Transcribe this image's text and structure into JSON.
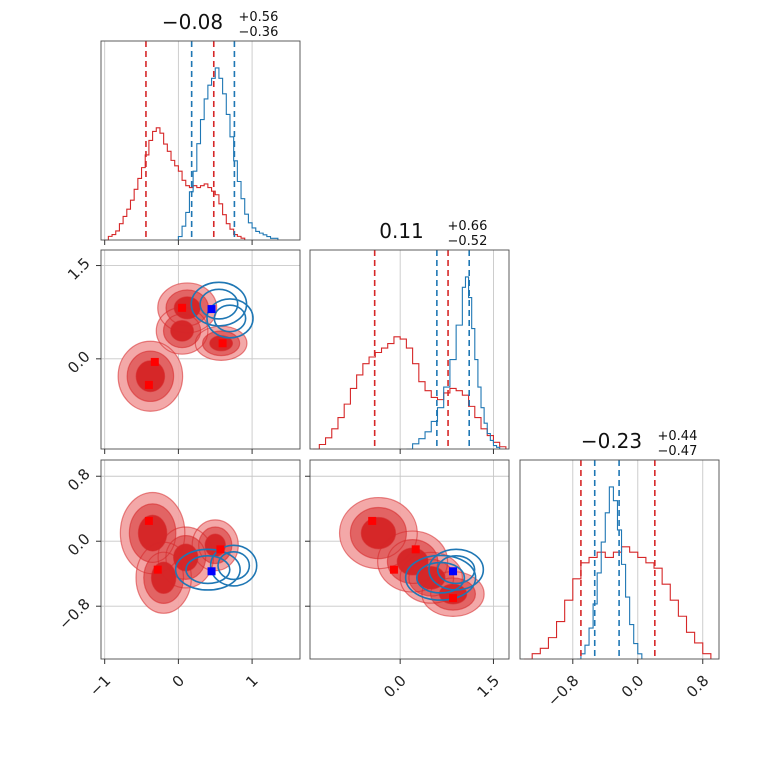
{
  "chart_data": {
    "type": "corner",
    "colors": {
      "red": "#d62728",
      "blue": "#1f77b4",
      "red_fill_light": "#f2a3a3",
      "red_fill_mid": "#e06060",
      "red_fill_dark": "#d62728",
      "red_marker": "#ff0000",
      "blue_marker": "#0000ff"
    },
    "params": [
      {
        "title_main": "−0.08",
        "title_plus": "+0.56",
        "title_minus": "−0.36",
        "range": [
          -1.05,
          1.65
        ],
        "ticks": [
          -1,
          0,
          1
        ],
        "tick_labels": [
          "−1",
          "0",
          "1"
        ]
      },
      {
        "title_main": "0.11",
        "title_plus": "+0.66",
        "title_minus": "−0.52",
        "range": [
          -1.45,
          1.75
        ],
        "ticks": [
          0.0,
          1.5
        ],
        "tick_labels": [
          "0.0",
          "1.5"
        ]
      },
      {
        "title_main": "−0.23",
        "title_plus": "+0.44",
        "title_minus": "−0.47",
        "range": [
          -1.45,
          1.0
        ],
        "ticks": [
          -0.8,
          0.0,
          0.8
        ],
        "tick_labels": [
          "−0.8",
          "0.0",
          "0.8"
        ]
      }
    ],
    "diag": [
      {
        "param": 0,
        "red_quantiles": [
          -0.44,
          0.48
        ],
        "blue_quantiles": [
          0.18,
          0.76
        ],
        "red_hist": [
          [
            -1.0,
            0
          ],
          [
            -0.95,
            2
          ],
          [
            -0.9,
            3
          ],
          [
            -0.85,
            5
          ],
          [
            -0.8,
            9
          ],
          [
            -0.75,
            13
          ],
          [
            -0.7,
            17
          ],
          [
            -0.65,
            22
          ],
          [
            -0.6,
            28
          ],
          [
            -0.55,
            34
          ],
          [
            -0.5,
            40
          ],
          [
            -0.45,
            47
          ],
          [
            -0.4,
            55
          ],
          [
            -0.35,
            60
          ],
          [
            -0.3,
            62
          ],
          [
            -0.25,
            59
          ],
          [
            -0.2,
            53
          ],
          [
            -0.15,
            49
          ],
          [
            -0.1,
            44
          ],
          [
            -0.05,
            41
          ],
          [
            0.0,
            38
          ],
          [
            0.05,
            33
          ],
          [
            0.1,
            30
          ],
          [
            0.15,
            29
          ],
          [
            0.2,
            30
          ],
          [
            0.25,
            29
          ],
          [
            0.3,
            30
          ],
          [
            0.35,
            31
          ],
          [
            0.4,
            29
          ],
          [
            0.45,
            27
          ],
          [
            0.5,
            25
          ],
          [
            0.55,
            20
          ],
          [
            0.6,
            14
          ],
          [
            0.65,
            9
          ],
          [
            0.7,
            6
          ],
          [
            0.75,
            3
          ],
          [
            0.8,
            2
          ],
          [
            0.85,
            1
          ],
          [
            0.9,
            0
          ]
        ],
        "blue_hist": [
          [
            -0.05,
            0
          ],
          [
            0.0,
            2
          ],
          [
            0.05,
            8
          ],
          [
            0.1,
            16
          ],
          [
            0.15,
            28
          ],
          [
            0.2,
            40
          ],
          [
            0.25,
            56
          ],
          [
            0.3,
            70
          ],
          [
            0.35,
            82
          ],
          [
            0.4,
            90
          ],
          [
            0.45,
            94
          ],
          [
            0.5,
            100
          ],
          [
            0.55,
            94
          ],
          [
            0.6,
            85
          ],
          [
            0.65,
            73
          ],
          [
            0.7,
            60
          ],
          [
            0.75,
            46
          ],
          [
            0.8,
            34
          ],
          [
            0.85,
            24
          ],
          [
            0.9,
            15
          ],
          [
            0.95,
            10
          ],
          [
            1.0,
            7
          ],
          [
            1.05,
            5
          ],
          [
            1.1,
            4
          ],
          [
            1.15,
            3
          ],
          [
            1.2,
            2
          ],
          [
            1.25,
            1
          ],
          [
            1.3,
            1
          ],
          [
            1.35,
            0
          ]
        ]
      },
      {
        "param": 1,
        "red_quantiles": [
          -0.41,
          0.77
        ],
        "blue_quantiles": [
          0.59,
          1.11
        ],
        "red_hist": [
          [
            -1.4,
            0
          ],
          [
            -1.3,
            2
          ],
          [
            -1.2,
            5
          ],
          [
            -1.1,
            9
          ],
          [
            -1.0,
            14
          ],
          [
            -0.9,
            20
          ],
          [
            -0.8,
            27
          ],
          [
            -0.7,
            33
          ],
          [
            -0.6,
            38
          ],
          [
            -0.5,
            41
          ],
          [
            -0.4,
            43
          ],
          [
            -0.3,
            45
          ],
          [
            -0.2,
            47
          ],
          [
            -0.1,
            50
          ],
          [
            0.0,
            49
          ],
          [
            0.1,
            45
          ],
          [
            0.2,
            38
          ],
          [
            0.3,
            30
          ],
          [
            0.4,
            26
          ],
          [
            0.5,
            23
          ],
          [
            0.6,
            22
          ],
          [
            0.7,
            25
          ],
          [
            0.8,
            27
          ],
          [
            0.9,
            26
          ],
          [
            1.0,
            24
          ],
          [
            1.1,
            19
          ],
          [
            1.2,
            14
          ],
          [
            1.3,
            9
          ],
          [
            1.4,
            6
          ],
          [
            1.5,
            3
          ],
          [
            1.6,
            1
          ],
          [
            1.7,
            0
          ]
        ],
        "blue_hist": [
          [
            0.1,
            0
          ],
          [
            0.2,
            3
          ],
          [
            0.3,
            6
          ],
          [
            0.4,
            10
          ],
          [
            0.5,
            16
          ],
          [
            0.6,
            24
          ],
          [
            0.7,
            36
          ],
          [
            0.8,
            52
          ],
          [
            0.9,
            72
          ],
          [
            1.0,
            94
          ],
          [
            1.05,
            100
          ],
          [
            1.1,
            88
          ],
          [
            1.15,
            70
          ],
          [
            1.2,
            52
          ],
          [
            1.25,
            36
          ],
          [
            1.3,
            24
          ],
          [
            1.35,
            15
          ],
          [
            1.4,
            9
          ],
          [
            1.45,
            5
          ],
          [
            1.5,
            2
          ],
          [
            1.55,
            1
          ],
          [
            1.6,
            0
          ]
        ]
      },
      {
        "param": 2,
        "red_quantiles": [
          -0.7,
          0.21
        ],
        "blue_quantiles": [
          -0.53,
          -0.23
        ],
        "red_hist": [
          [
            -1.4,
            0
          ],
          [
            -1.3,
            1
          ],
          [
            -1.2,
            2
          ],
          [
            -1.1,
            4
          ],
          [
            -1.0,
            7
          ],
          [
            -0.9,
            11
          ],
          [
            -0.8,
            15
          ],
          [
            -0.7,
            18
          ],
          [
            -0.6,
            19
          ],
          [
            -0.5,
            20
          ],
          [
            -0.4,
            19
          ],
          [
            -0.3,
            20
          ],
          [
            -0.2,
            21
          ],
          [
            -0.1,
            20
          ],
          [
            0.0,
            19
          ],
          [
            0.1,
            18
          ],
          [
            0.2,
            17
          ],
          [
            0.3,
            14
          ],
          [
            0.4,
            11
          ],
          [
            0.5,
            8
          ],
          [
            0.6,
            5
          ],
          [
            0.7,
            3
          ],
          [
            0.8,
            1
          ],
          [
            0.9,
            0
          ]
        ],
        "blue_hist": [
          [
            -0.75,
            0
          ],
          [
            -0.7,
            3
          ],
          [
            -0.65,
            8
          ],
          [
            -0.6,
            18
          ],
          [
            -0.55,
            32
          ],
          [
            -0.5,
            50
          ],
          [
            -0.45,
            68
          ],
          [
            -0.4,
            85
          ],
          [
            -0.35,
            100
          ],
          [
            -0.3,
            92
          ],
          [
            -0.25,
            75
          ],
          [
            -0.2,
            55
          ],
          [
            -0.15,
            36
          ],
          [
            -0.1,
            20
          ],
          [
            -0.05,
            9
          ],
          [
            0.0,
            3
          ],
          [
            0.05,
            0
          ]
        ]
      }
    ],
    "joint": [
      {
        "x_param": 0,
        "y_param": 1,
        "red_blobs": [
          [
            -0.38,
            -0.28,
            0.35,
            0.45
          ],
          [
            0.12,
            0.82,
            0.32,
            0.32
          ],
          [
            0.58,
            0.25,
            0.28,
            0.22
          ],
          [
            0.05,
            0.45,
            0.28,
            0.3
          ]
        ],
        "blue_blobs": [
          [
            0.55,
            0.88,
            0.3,
            0.28
          ],
          [
            0.7,
            0.65,
            0.25,
            0.25
          ]
        ],
        "red_markers": [
          [
            -0.32,
            -0.05
          ],
          [
            -0.4,
            -0.42
          ],
          [
            0.05,
            0.82
          ],
          [
            0.6,
            0.25
          ]
        ],
        "blue_markers": [
          [
            0.45,
            0.8
          ]
        ]
      },
      {
        "x_param": 0,
        "y_param": 2,
        "red_blobs": [
          [
            -0.35,
            0.1,
            0.35,
            0.4
          ],
          [
            -0.2,
            -0.45,
            0.3,
            0.35
          ],
          [
            0.5,
            -0.05,
            0.25,
            0.25
          ],
          [
            0.1,
            -0.2,
            0.3,
            0.3
          ]
        ],
        "blue_blobs": [
          [
            0.4,
            -0.35,
            0.35,
            0.2
          ],
          [
            0.75,
            -0.3,
            0.25,
            0.2
          ]
        ],
        "red_markers": [
          [
            -0.4,
            0.25
          ],
          [
            -0.28,
            -0.35
          ],
          [
            0.57,
            -0.1
          ]
        ],
        "blue_markers": [
          [
            0.45,
            -0.37
          ]
        ]
      },
      {
        "x_param": 1,
        "y_param": 2,
        "red_blobs": [
          [
            -0.35,
            0.1,
            0.5,
            0.35
          ],
          [
            0.2,
            -0.25,
            0.45,
            0.3
          ],
          [
            0.85,
            -0.65,
            0.4,
            0.22
          ],
          [
            0.5,
            -0.45,
            0.4,
            0.25
          ]
        ],
        "blue_blobs": [
          [
            0.65,
            -0.45,
            0.45,
            0.22
          ],
          [
            0.9,
            -0.35,
            0.35,
            0.2
          ]
        ],
        "red_markers": [
          [
            -0.45,
            0.25
          ],
          [
            -0.1,
            -0.35
          ],
          [
            0.25,
            -0.1
          ],
          [
            0.85,
            -0.7
          ]
        ],
        "blue_markers": [
          [
            0.85,
            -0.37
          ]
        ]
      }
    ]
  }
}
